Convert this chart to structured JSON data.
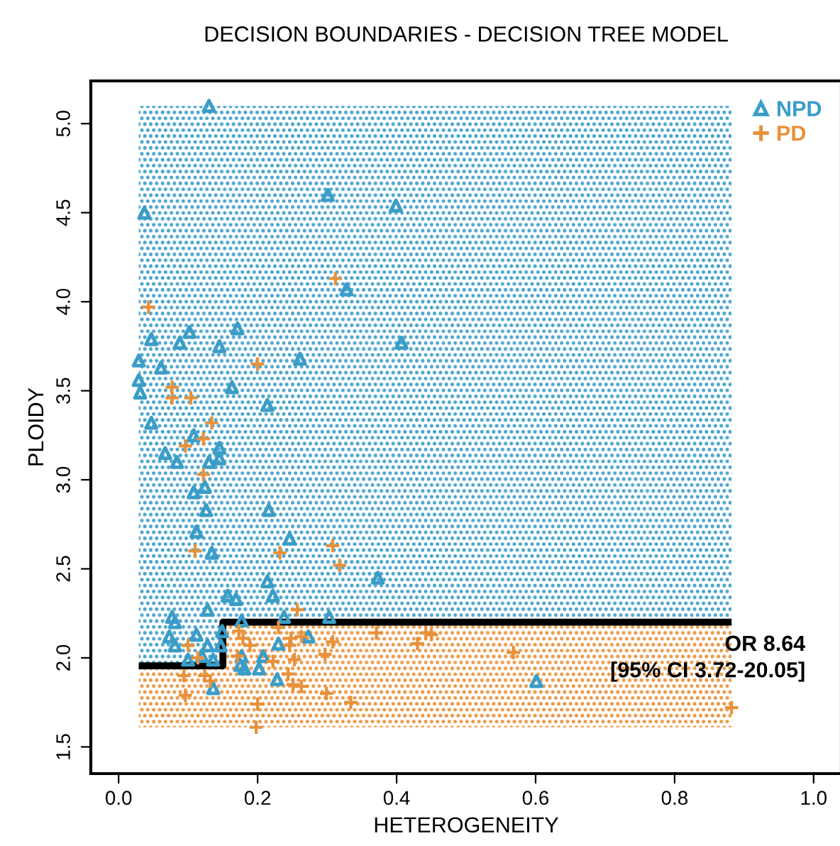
{
  "chart_data": {
    "type": "scatter",
    "title": "DECISION BOUNDARIES - DECISION TREE MODEL",
    "xlabel": "HETEROGENEITY",
    "ylabel": "PLOIDY",
    "xlim": [
      -0.04,
      1.04
    ],
    "ylim": [
      1.35,
      5.24
    ],
    "xticks": [
      {
        "value": 0,
        "label": "0.0"
      },
      {
        "value": 0.2,
        "label": "0.2"
      },
      {
        "value": 0.4,
        "label": "0.4"
      },
      {
        "value": 0.6,
        "label": "0.6"
      },
      {
        "value": 0.8,
        "label": "0.8"
      },
      {
        "value": 1,
        "label": "1.0"
      }
    ],
    "yticks": [
      1.5,
      {
        "value": 2,
        "label": "2.0"
      },
      2.5,
      {
        "value": 3,
        "label": "3.0"
      },
      3.5,
      {
        "value": 4,
        "label": "4.0"
      },
      4.5,
      {
        "value": 5,
        "label": "5.0"
      }
    ],
    "grid": false,
    "legend": "top right",
    "annotations": [
      "OR 8.64\n[95% CI 3.72-20.05]"
    ],
    "series": [
      {
        "type": "line",
        "color": "#000000",
        "line_style": "solid",
        "marker": "none",
        "x": [
          0.029,
          0.15,
          0.15,
          0.882
        ],
        "values": [
          1.955,
          1.955,
          2.2,
          2.2
        ]
      },
      {
        "name": "NPD",
        "color": "#3a9dc8",
        "marker": "triangle",
        "x": [
          0.13,
          0.037,
          0.301,
          0.399,
          0.328,
          0.407,
          0.047,
          0.102,
          0.088,
          0.145,
          0.171,
          0.261,
          0.029,
          0.061,
          0.029,
          0.031,
          0.163,
          0.214,
          0.047,
          0.108,
          0.067,
          0.084,
          0.145,
          0.145,
          0.13,
          0.124,
          0.108,
          0.126,
          0.216,
          0.112,
          0.134,
          0.246,
          0.214,
          0.222,
          0.157,
          0.169,
          0.128,
          0.077,
          0.081,
          0.177,
          0.238,
          0.303,
          0.073,
          0.112,
          0.081,
          0.128,
          0.149,
          0.147,
          0.1,
          0.12,
          0.136,
          0.177,
          0.175,
          0.181,
          0.202,
          0.208,
          0.23,
          0.273,
          0.228,
          0.136,
          0.373,
          0.601
        ],
        "values": [
          5.1,
          4.5,
          4.6,
          4.54,
          4.07,
          3.77,
          3.79,
          3.83,
          3.77,
          3.75,
          3.85,
          3.68,
          3.67,
          3.63,
          3.56,
          3.49,
          3.52,
          3.42,
          3.32,
          3.25,
          3.15,
          3.1,
          3.18,
          3.12,
          3.1,
          2.96,
          2.93,
          2.83,
          2.83,
          2.71,
          2.59,
          2.67,
          2.43,
          2.35,
          2.35,
          2.33,
          2.27,
          2.23,
          2.2,
          2.21,
          2.23,
          2.23,
          2.12,
          2.13,
          2.07,
          2.07,
          2.15,
          2.07,
          1.99,
          2.01,
          1.99,
          2.01,
          1.96,
          1.94,
          1.94,
          2.01,
          2.08,
          2.12,
          1.88,
          1.83,
          2.45,
          1.87
        ]
      },
      {
        "name": "PD",
        "color": "#e8913a",
        "marker": "cross",
        "x": [
          0.312,
          0.043,
          0.2,
          0.077,
          0.077,
          0.104,
          0.134,
          0.096,
          0.122,
          0.122,
          0.11,
          0.232,
          0.308,
          0.318,
          0.257,
          0.173,
          0.179,
          0.189,
          0.1,
          0.114,
          0.171,
          0.23,
          0.248,
          0.246,
          0.263,
          0.308,
          0.222,
          0.253,
          0.297,
          0.094,
          0.124,
          0.132,
          0.244,
          0.251,
          0.263,
          0.096,
          0.299,
          0.334,
          0.2,
          0.198,
          0.371,
          0.43,
          0.442,
          0.45,
          0.568,
          0.882
        ],
        "values": [
          4.13,
          3.97,
          3.65,
          3.52,
          3.46,
          3.46,
          3.32,
          3.19,
          3.23,
          3.03,
          2.6,
          2.59,
          2.63,
          2.52,
          2.27,
          2.15,
          2.11,
          2.07,
          2.07,
          2.0,
          2.01,
          2.17,
          2.11,
          2.07,
          2.12,
          2.09,
          1.98,
          1.99,
          2.02,
          1.9,
          1.9,
          1.87,
          1.91,
          1.85,
          1.84,
          1.79,
          1.8,
          1.75,
          1.74,
          1.61,
          2.14,
          2.08,
          2.14,
          2.13,
          2.03,
          1.72
        ]
      }
    ]
  }
}
